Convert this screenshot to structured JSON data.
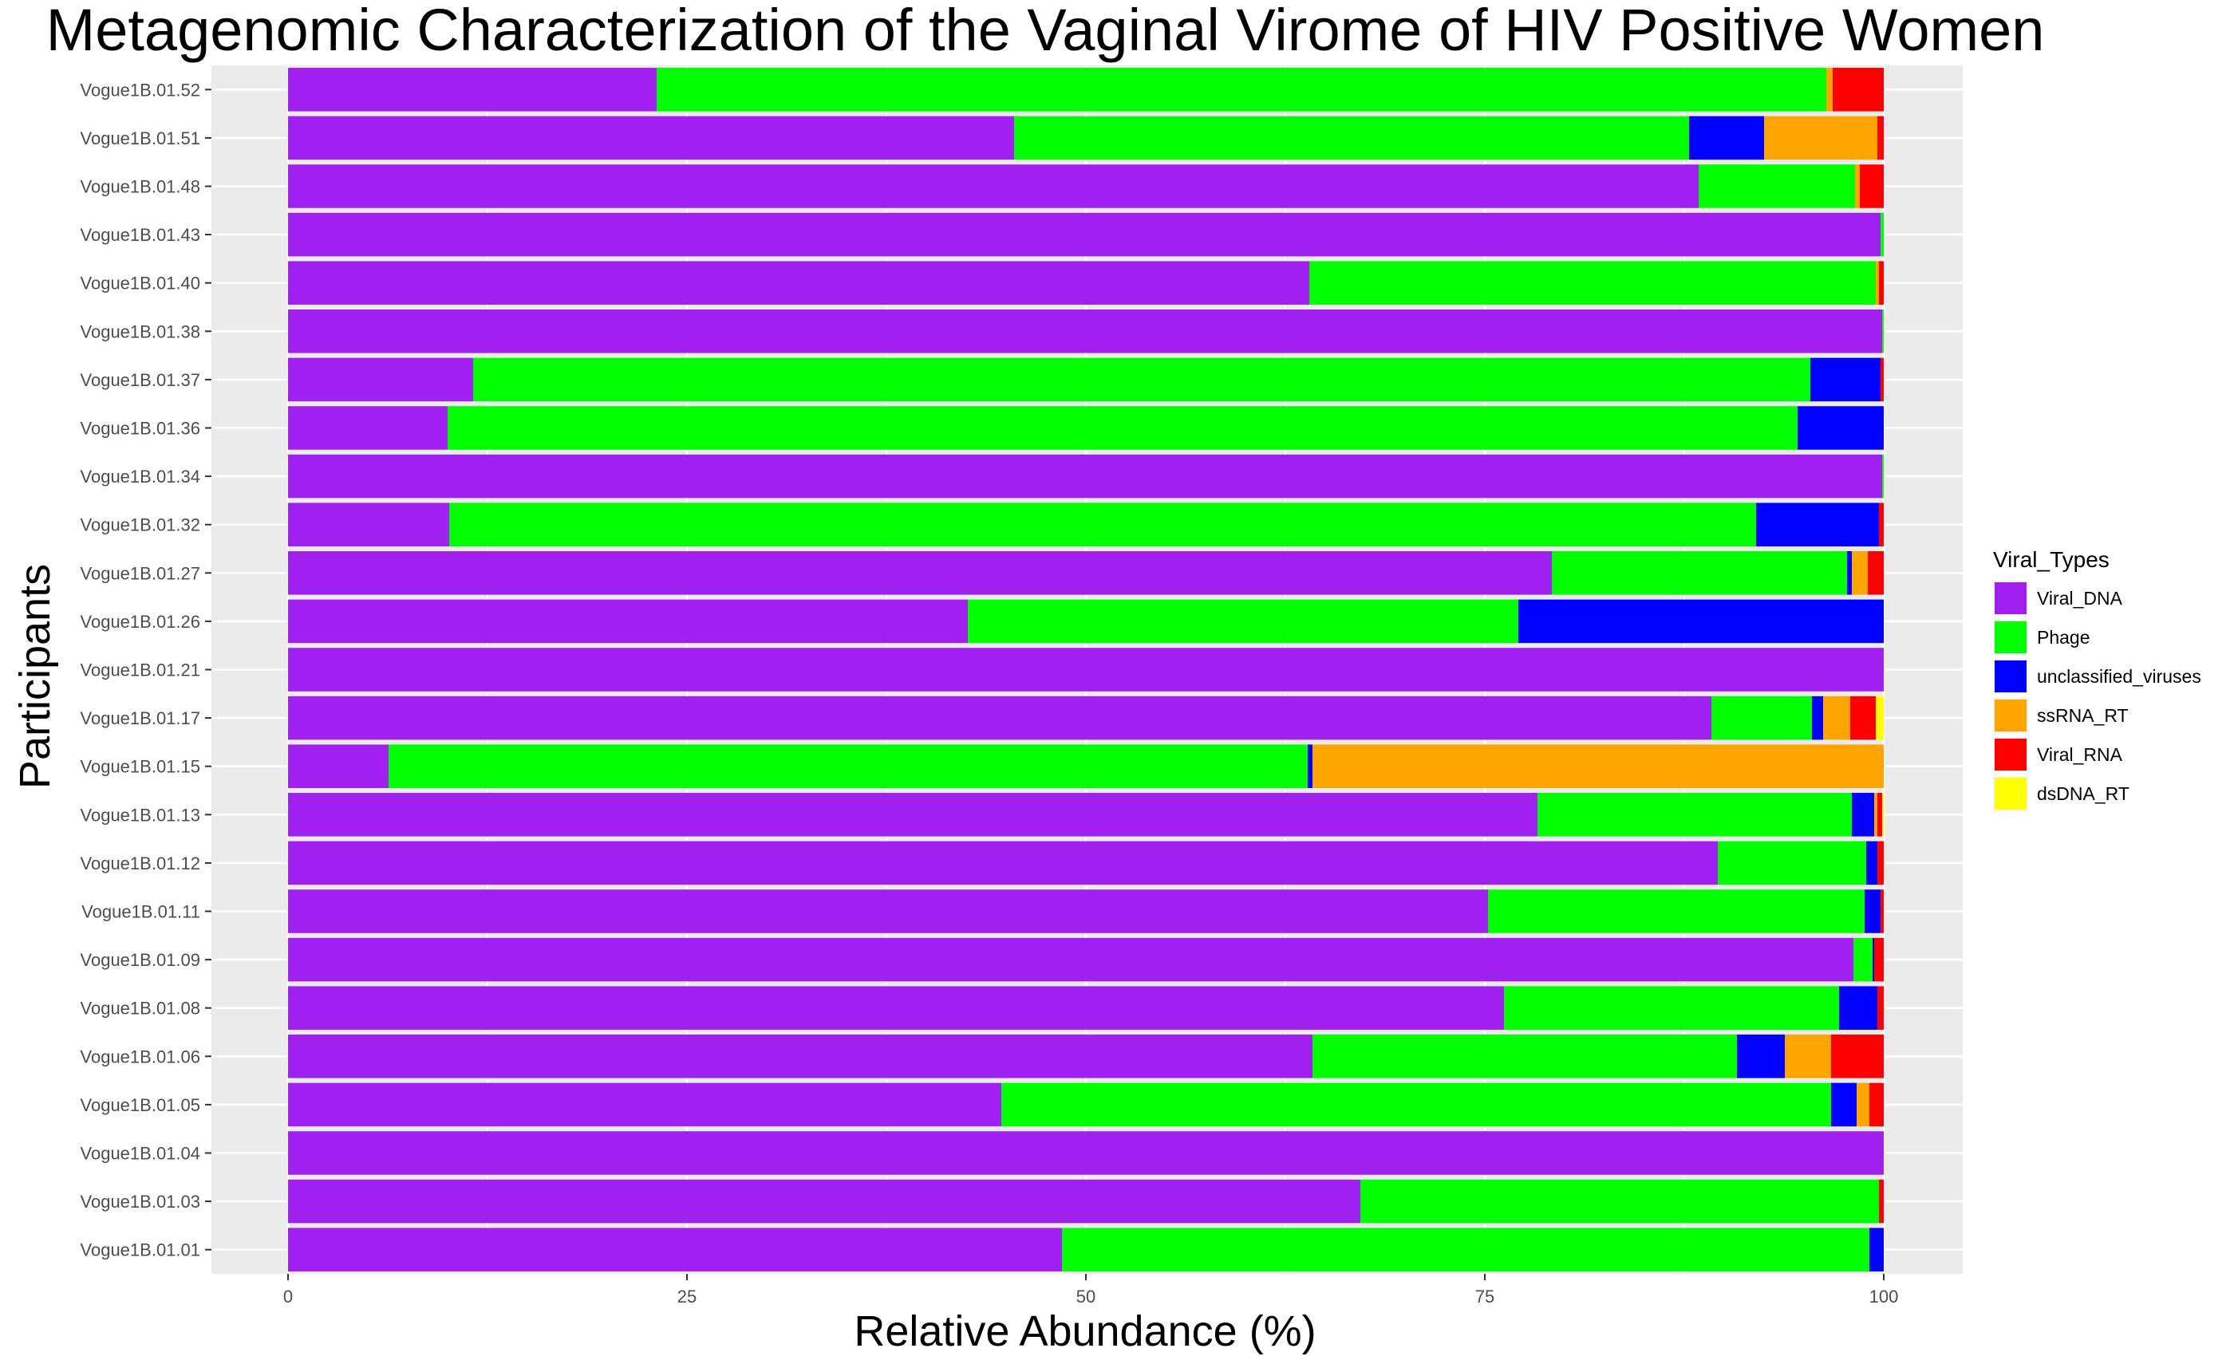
{
  "chart_data": {
    "type": "bar",
    "orientation": "horizontal",
    "stacked": true,
    "title": "Metagenomic Characterization of the Vaginal Virome of HIV Positive Women",
    "xlabel": "Relative Abundance (%)",
    "ylabel": "Participants",
    "xlim": [
      0,
      100
    ],
    "xticks": [
      "0",
      "25",
      "50",
      "75",
      "100"
    ],
    "grid": true,
    "legend_position": "right",
    "legend_title": "Viral_Types",
    "categories": [
      "Vogue1B.01.52",
      "Vogue1B.01.51",
      "Vogue1B.01.48",
      "Vogue1B.01.43",
      "Vogue1B.01.40",
      "Vogue1B.01.38",
      "Vogue1B.01.37",
      "Vogue1B.01.36",
      "Vogue1B.01.34",
      "Vogue1B.01.32",
      "Vogue1B.01.27",
      "Vogue1B.01.26",
      "Vogue1B.01.21",
      "Vogue1B.01.17",
      "Vogue1B.01.15",
      "Vogue1B.01.13",
      "Vogue1B.01.12",
      "Vogue1B.01.11",
      "Vogue1B.01.09",
      "Vogue1B.01.08",
      "Vogue1B.01.06",
      "Vogue1B.01.05",
      "Vogue1B.01.04",
      "Vogue1B.01.03",
      "Vogue1B.01.01"
    ],
    "series": [
      {
        "name": "Viral_DNA",
        "color": "#A020F0",
        "values": [
          23.1,
          45.5,
          88.4,
          99.8,
          64.0,
          99.9,
          11.6,
          10.0,
          99.9,
          10.1,
          79.2,
          42.6,
          100,
          89.2,
          6.3,
          78.3,
          89.6,
          75.2,
          98.1,
          76.2,
          64.2,
          44.7,
          100,
          67.2,
          48.5
        ]
      },
      {
        "name": "Phage",
        "color": "#00FF00",
        "values": [
          73.3,
          42.3,
          9.8,
          0.2,
          35.5,
          0.1,
          83.8,
          84.6,
          0.1,
          81.9,
          18.5,
          34.5,
          0,
          6.3,
          57.6,
          19.7,
          9.3,
          23.6,
          1.2,
          21.0,
          26.6,
          52.0,
          0,
          32.5,
          50.6
        ]
      },
      {
        "name": "unclassified_viruses",
        "color": "#0000FF",
        "values": [
          0,
          4.7,
          0,
          0,
          0,
          0,
          4.4,
          5.4,
          0,
          7.7,
          0.3,
          22.9,
          0,
          0.7,
          0.3,
          1.4,
          0.7,
          1.0,
          0.1,
          2.4,
          3.0,
          1.6,
          0,
          0,
          0.9
        ]
      },
      {
        "name": "ssRNA_RT",
        "color": "#FFA500",
        "values": [
          0.4,
          7.1,
          0.3,
          0,
          0.2,
          0,
          0,
          0,
          0,
          0,
          1.0,
          0,
          0,
          1.7,
          35.8,
          0.2,
          0,
          0,
          0,
          0,
          2.9,
          0.8,
          0,
          0,
          0
        ]
      },
      {
        "name": "Viral_RNA",
        "color": "#FF0000",
        "values": [
          3.2,
          0.4,
          1.5,
          0,
          0.3,
          0,
          0.2,
          0,
          0,
          0.3,
          1.0,
          0,
          0,
          1.6,
          0,
          0.3,
          0.4,
          0.2,
          0.6,
          0.4,
          3.3,
          0.9,
          0,
          0.3,
          0
        ]
      },
      {
        "name": "dsDNA_RT",
        "color": "#FFFF00",
        "values": [
          0,
          0,
          0,
          0,
          0,
          0,
          0,
          0,
          0,
          0,
          0,
          0,
          0,
          0.5,
          0,
          0.1,
          0,
          0,
          0,
          0,
          0,
          0,
          0,
          0,
          0
        ]
      }
    ]
  },
  "colors": {
    "panel_background": "#EBEBEB",
    "gridline": "#FFFFFF"
  }
}
